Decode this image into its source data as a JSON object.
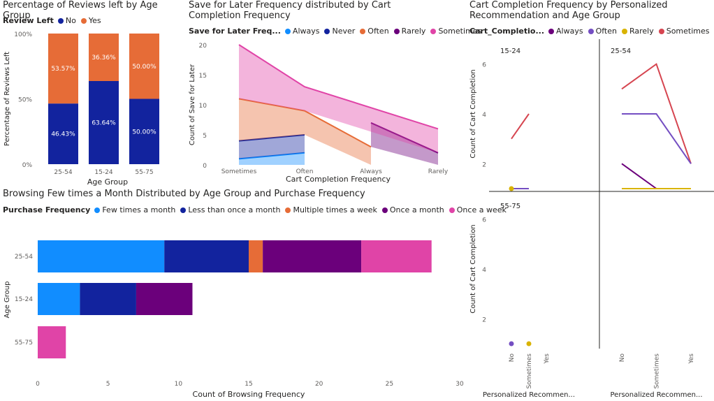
{
  "chart_data": [
    {
      "id": "reviews",
      "type": "bar",
      "stacked": "percent",
      "title": "Percentage of Reviews left by Age Group",
      "legend_title": "Review Left",
      "xlabel": "Age Group",
      "ylabel": "Percentage of Reviews Left",
      "categories": [
        "25-54",
        "15-24",
        "55-75"
      ],
      "yticks": [
        "0%",
        "50%",
        "100%"
      ],
      "series": [
        {
          "name": "No",
          "color": "#12239E",
          "values": [
            46.43,
            63.64,
            50.0
          ],
          "labels": [
            "46.43%",
            "63.64%",
            "50.00%"
          ]
        },
        {
          "name": "Yes",
          "color": "#E66C37",
          "values": [
            53.57,
            36.36,
            50.0
          ],
          "labels": [
            "53.57%",
            "36.36%",
            "50.00%"
          ]
        }
      ]
    },
    {
      "id": "saveforlater",
      "type": "area",
      "stacked": true,
      "title": "Save for Later Frequency distributed by Cart Completion Frequency",
      "legend_title": "Save for Later Freq...",
      "xlabel": "Cart Completion Frequency",
      "ylabel": "Count of Save for Later",
      "categories": [
        "Sometimes",
        "Often",
        "Always",
        "Rarely"
      ],
      "ylim": [
        0,
        20
      ],
      "yticks": [
        0,
        5,
        10,
        15,
        20
      ],
      "series": [
        {
          "name": "Always",
          "color": "#118DFF",
          "values": [
            1,
            2,
            null,
            null
          ]
        },
        {
          "name": "Never",
          "color": "#12239E",
          "values": [
            3,
            3,
            null,
            null
          ]
        },
        {
          "name": "Often",
          "color": "#E66C37",
          "values": [
            7,
            4,
            3,
            null
          ]
        },
        {
          "name": "Rarely",
          "color": "#6B007B",
          "values": [
            null,
            null,
            4,
            2
          ]
        },
        {
          "name": "Sometimes",
          "color": "#E044A7",
          "values": [
            9,
            4,
            null,
            4
          ]
        }
      ]
    },
    {
      "id": "browsing",
      "type": "bar",
      "orientation": "horizontal",
      "stacked": true,
      "title": "Browsing Few times a Month Distributed by Age Group and Purchase Frequency",
      "legend_title": "Purchase Frequency",
      "xlabel": "Count of Browsing Frequency",
      "ylabel": "Age Group",
      "categories": [
        "25-54",
        "15-24",
        "55-75"
      ],
      "xlim": [
        0,
        30
      ],
      "xticks": [
        0,
        5,
        10,
        15,
        20,
        25,
        30
      ],
      "series": [
        {
          "name": "Few times a month",
          "color": "#118DFF",
          "values": [
            9,
            3,
            0
          ]
        },
        {
          "name": "Less than once a month",
          "color": "#12239E",
          "values": [
            6,
            4,
            0
          ]
        },
        {
          "name": "Multiple times a week",
          "color": "#E66C37",
          "values": [
            1,
            0,
            0
          ]
        },
        {
          "name": "Once a month",
          "color": "#6B007B",
          "values": [
            7,
            4,
            0
          ]
        },
        {
          "name": "Once a week",
          "color": "#E044A7",
          "values": [
            5,
            0,
            2
          ]
        }
      ]
    },
    {
      "id": "cartcompletion",
      "type": "line",
      "small_multiples": true,
      "title": "Cart Completion Frequency by Personalized Recommendation and Age Group",
      "legend_title": "Cart_Completio...",
      "xlabel": "Personalized Recommen...",
      "ylabel": "Count of Cart Completion",
      "categories": [
        "No",
        "Sometimes",
        "Yes"
      ],
      "yticks": [
        2,
        4,
        6
      ],
      "legend": [
        {
          "name": "Always",
          "color": "#6B007B"
        },
        {
          "name": "Often",
          "color": "#744EC2"
        },
        {
          "name": "Rarely",
          "color": "#D9B300"
        },
        {
          "name": "Sometimes",
          "color": "#D64550"
        }
      ],
      "panels": [
        {
          "label": "15-24",
          "series": [
            {
              "name": "Sometimes",
              "color": "#D64550",
              "values": [
                3,
                4,
                null
              ]
            },
            {
              "name": "Often",
              "color": "#744EC2",
              "values": [
                1,
                1,
                null
              ]
            },
            {
              "name": "Rarely",
              "color": "#D9B300",
              "values": [
                1,
                null,
                null
              ]
            }
          ]
        },
        {
          "label": "25-54",
          "series": [
            {
              "name": "Sometimes",
              "color": "#D64550",
              "values": [
                5,
                6,
                2
              ]
            },
            {
              "name": "Often",
              "color": "#744EC2",
              "values": [
                4,
                4,
                2
              ]
            },
            {
              "name": "Always",
              "color": "#6B007B",
              "values": [
                2,
                1,
                null
              ]
            },
            {
              "name": "Rarely",
              "color": "#D9B300",
              "values": [
                1,
                null,
                1
              ]
            }
          ]
        },
        {
          "label": "55-75",
          "series": [
            {
              "name": "Often",
              "color": "#744EC2",
              "values": [
                1,
                null,
                null
              ]
            },
            {
              "name": "Rarely",
              "color": "#D9B300",
              "values": [
                null,
                1,
                null
              ]
            }
          ]
        }
      ]
    }
  ]
}
